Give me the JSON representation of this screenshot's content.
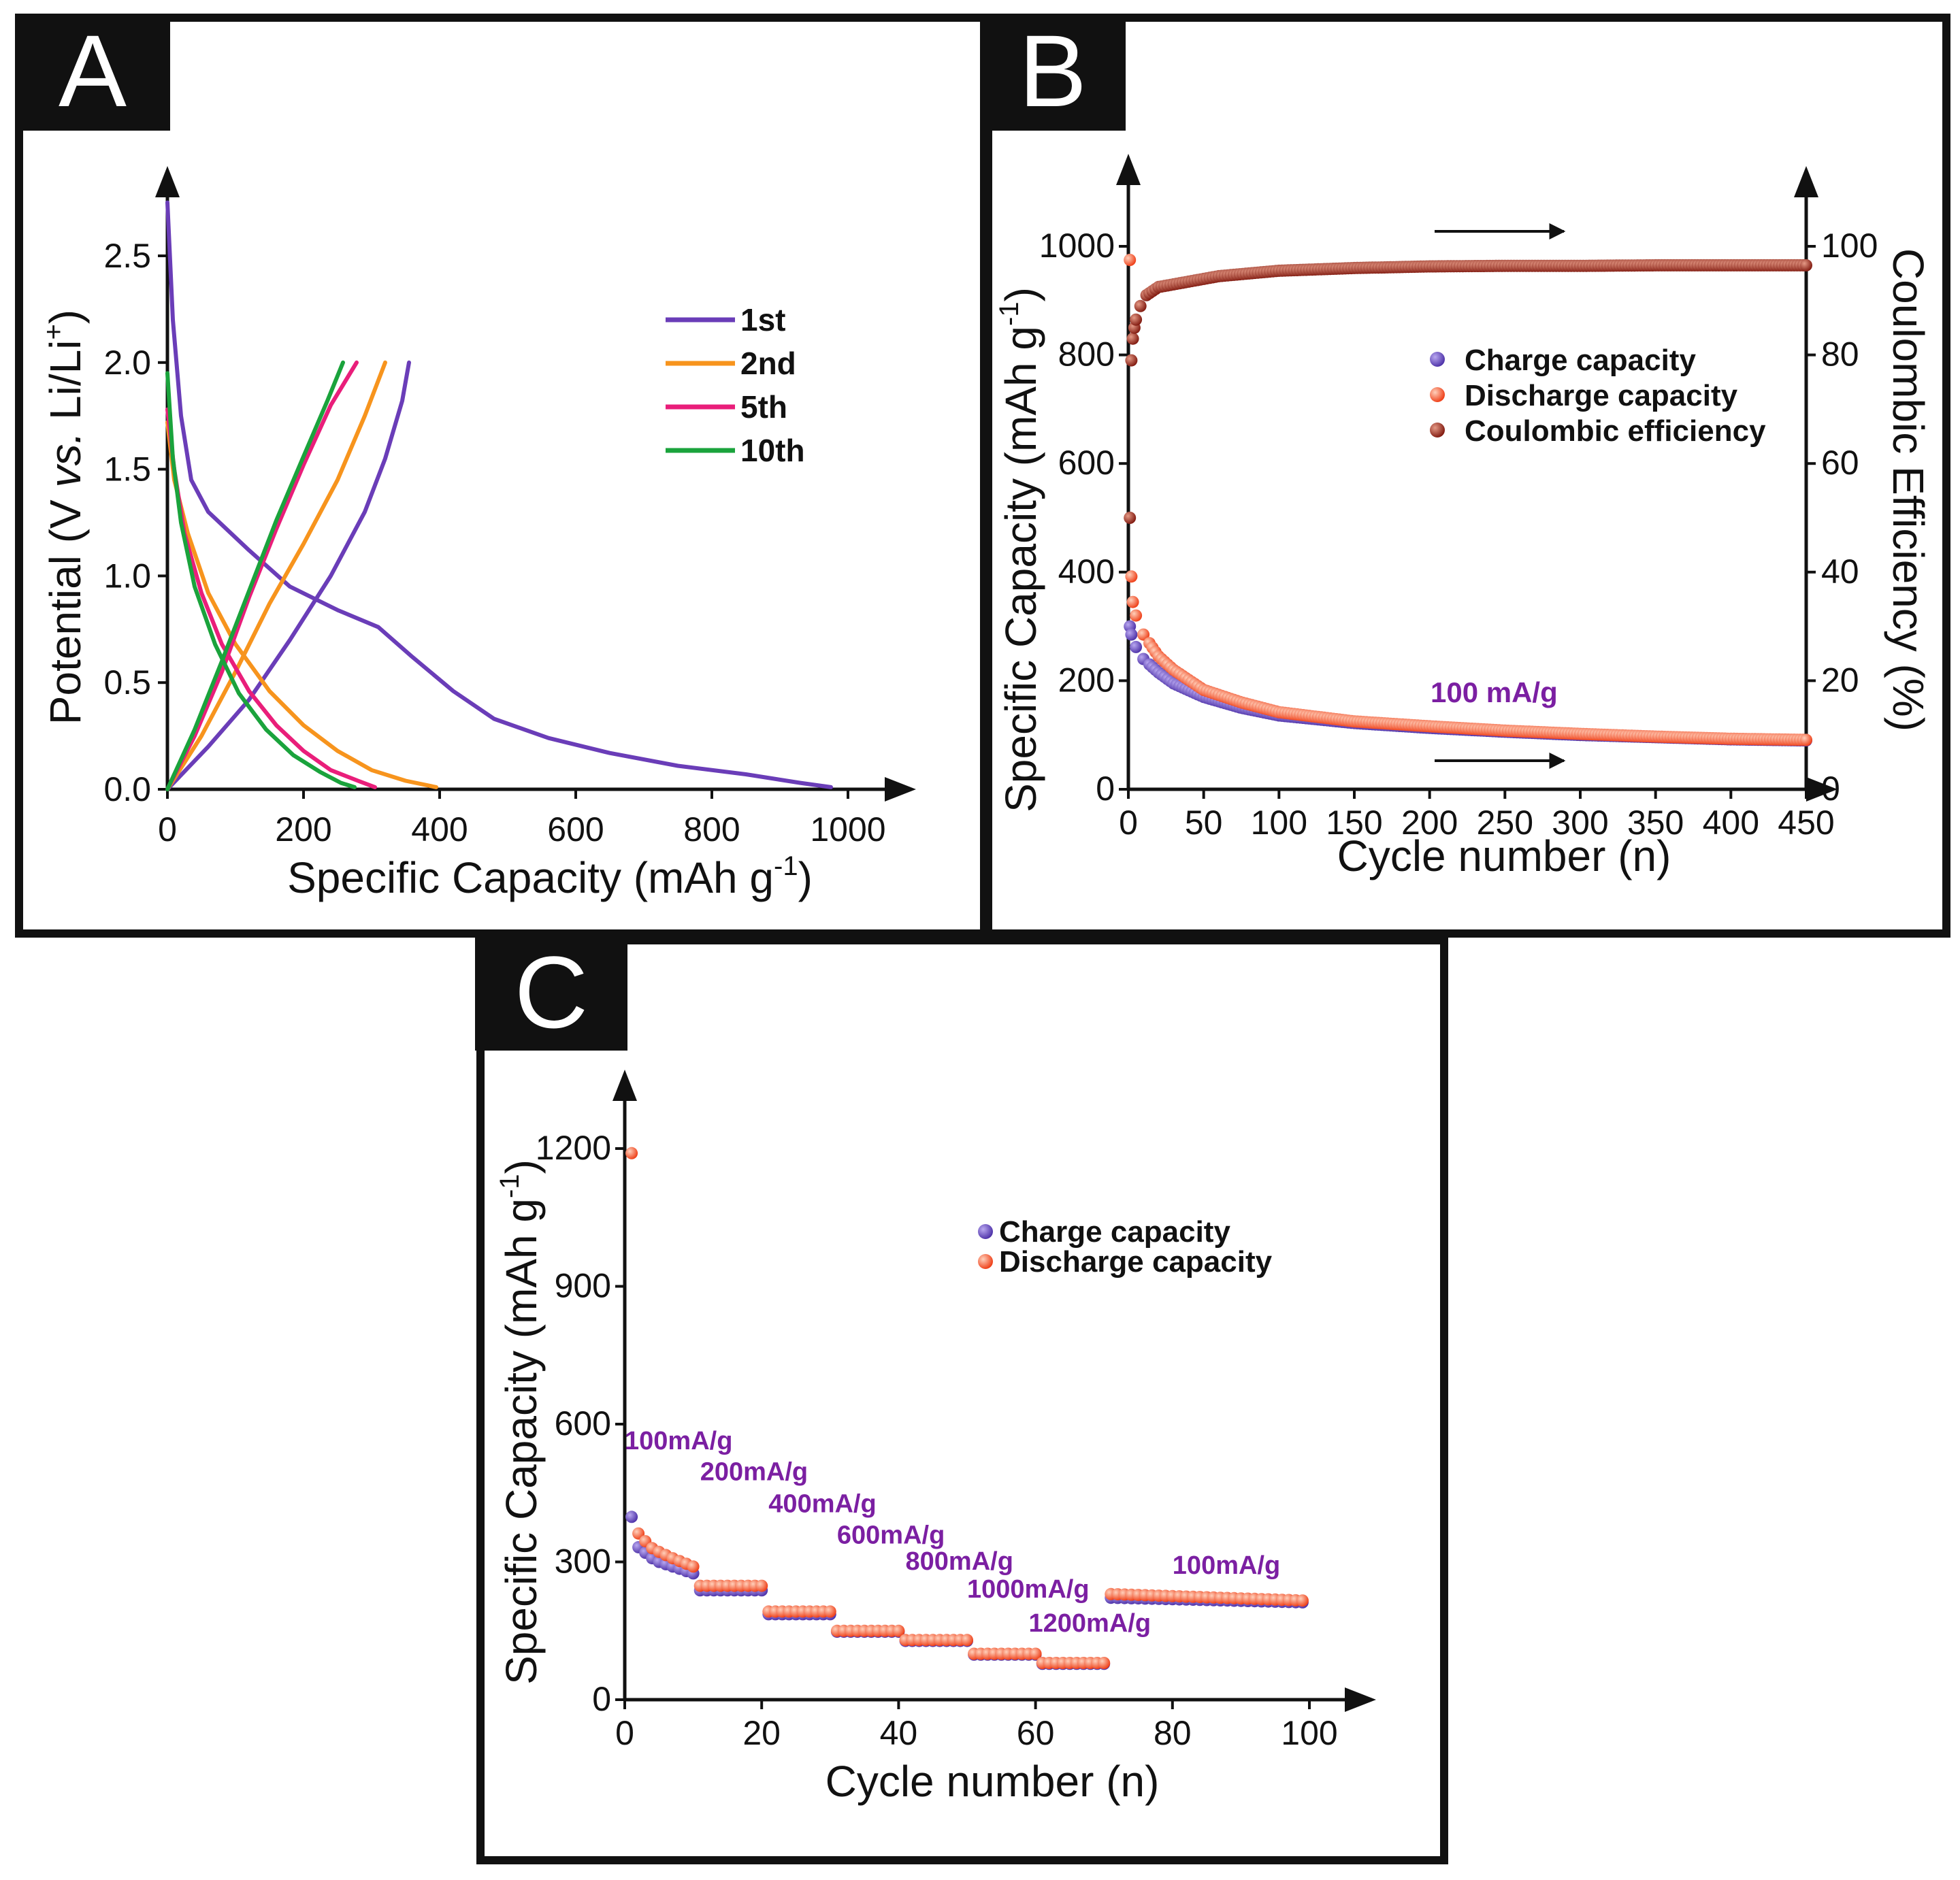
{
  "figure": {
    "panels": [
      "A",
      "B",
      "C"
    ]
  },
  "chart_data": [
    {
      "panel": "A",
      "type": "line",
      "xlabel": "Specific Capacity (mAh g",
      "xlabel_sup": "-1",
      "xlabel_end": ")",
      "ylabel_pre": "Potential (V ",
      "ylabel_italic": "vs.",
      "ylabel_post": " Li/Li",
      "ylabel_sup": "+",
      "ylabel_end": ")",
      "xlim": [
        0,
        1100
      ],
      "ylim": [
        0,
        2.8
      ],
      "xticks": [
        0,
        200,
        400,
        600,
        800,
        1000
      ],
      "yticks": [
        0.0,
        0.5,
        1.0,
        1.5,
        2.0,
        2.5
      ],
      "ytick_labels": [
        "0.0",
        "0.5",
        "1.0",
        "1.5",
        "2.0",
        "2.5"
      ],
      "legend": [
        "1st",
        "2nd",
        "5th",
        "10th"
      ],
      "series": [
        {
          "name": "1st",
          "color": "#6a3db8",
          "discharge": [
            [
              0,
              2.75
            ],
            [
              8,
              2.2
            ],
            [
              20,
              1.75
            ],
            [
              35,
              1.45
            ],
            [
              60,
              1.3
            ],
            [
              120,
              1.12
            ],
            [
              180,
              0.95
            ],
            [
              250,
              0.84
            ],
            [
              310,
              0.76
            ],
            [
              360,
              0.62
            ],
            [
              420,
              0.46
            ],
            [
              480,
              0.33
            ],
            [
              560,
              0.24
            ],
            [
              650,
              0.17
            ],
            [
              750,
              0.11
            ],
            [
              850,
              0.07
            ],
            [
              930,
              0.03
            ],
            [
              975,
              0.01
            ]
          ],
          "charge": [
            [
              0,
              0.0
            ],
            [
              60,
              0.2
            ],
            [
              120,
              0.42
            ],
            [
              180,
              0.7
            ],
            [
              240,
              1.0
            ],
            [
              290,
              1.3
            ],
            [
              320,
              1.55
            ],
            [
              345,
              1.82
            ],
            [
              355,
              2.0
            ]
          ]
        },
        {
          "name": "2nd",
          "color": "#f7941d",
          "discharge": [
            [
              0,
              1.72
            ],
            [
              10,
              1.45
            ],
            [
              30,
              1.2
            ],
            [
              60,
              0.92
            ],
            [
              100,
              0.68
            ],
            [
              150,
              0.46
            ],
            [
              200,
              0.3
            ],
            [
              250,
              0.18
            ],
            [
              300,
              0.09
            ],
            [
              350,
              0.04
            ],
            [
              395,
              0.01
            ]
          ],
          "charge": [
            [
              0,
              0.0
            ],
            [
              50,
              0.25
            ],
            [
              100,
              0.55
            ],
            [
              150,
              0.87
            ],
            [
              200,
              1.15
            ],
            [
              250,
              1.45
            ],
            [
              290,
              1.75
            ],
            [
              320,
              2.0
            ]
          ]
        },
        {
          "name": "5th",
          "color": "#e91e7a",
          "discharge": [
            [
              0,
              1.78
            ],
            [
              10,
              1.5
            ],
            [
              25,
              1.2
            ],
            [
              50,
              0.92
            ],
            [
              80,
              0.68
            ],
            [
              120,
              0.46
            ],
            [
              160,
              0.3
            ],
            [
              200,
              0.18
            ],
            [
              240,
              0.09
            ],
            [
              280,
              0.04
            ],
            [
              305,
              0.01
            ]
          ],
          "charge": [
            [
              0,
              0.0
            ],
            [
              40,
              0.25
            ],
            [
              80,
              0.55
            ],
            [
              120,
              0.9
            ],
            [
              160,
              1.22
            ],
            [
              200,
              1.52
            ],
            [
              240,
              1.8
            ],
            [
              278,
              2.0
            ]
          ]
        },
        {
          "name": "10th",
          "color": "#1aa33c",
          "discharge": [
            [
              0,
              1.95
            ],
            [
              8,
              1.55
            ],
            [
              20,
              1.25
            ],
            [
              40,
              0.95
            ],
            [
              70,
              0.68
            ],
            [
              105,
              0.45
            ],
            [
              145,
              0.28
            ],
            [
              185,
              0.16
            ],
            [
              225,
              0.08
            ],
            [
              255,
              0.03
            ],
            [
              275,
              0.01
            ]
          ],
          "charge": [
            [
              0,
              0.0
            ],
            [
              40,
              0.28
            ],
            [
              80,
              0.6
            ],
            [
              120,
              0.93
            ],
            [
              160,
              1.26
            ],
            [
              200,
              1.56
            ],
            [
              235,
              1.82
            ],
            [
              258,
              2.0
            ]
          ]
        }
      ]
    },
    {
      "panel": "B",
      "type": "scatter",
      "xlabel": "Cycle number (n)",
      "ylabel": "Specific Capacity (mAh g",
      "ylabel_sup": "-1",
      "ylabel_end": ")",
      "y2label": "Coulombic Efficiency (%)",
      "xlim": [
        0,
        450
      ],
      "ylim": [
        0,
        1100
      ],
      "y2lim": [
        0,
        110
      ],
      "xticks": [
        0,
        50,
        100,
        150,
        200,
        250,
        300,
        350,
        400,
        450
      ],
      "yticks": [
        0,
        200,
        400,
        600,
        800,
        1000
      ],
      "y2ticks": [
        0,
        20,
        40,
        60,
        80,
        100
      ],
      "legend": [
        "Charge capacity",
        "Discharge capacity",
        "Coulombic efficiency"
      ],
      "annotation": "100 mA/g",
      "series": [
        {
          "name": "Charge capacity",
          "color": "#5b3fbf",
          "axis": "left",
          "points": [
            [
              1,
              300
            ],
            [
              2,
              285
            ],
            [
              5,
              262
            ],
            [
              10,
              240
            ],
            [
              20,
              215
            ],
            [
              30,
              195
            ],
            [
              50,
              170
            ],
            [
              75,
              150
            ],
            [
              100,
              136
            ],
            [
              150,
              122
            ],
            [
              200,
              113
            ],
            [
              250,
              106
            ],
            [
              300,
              100
            ],
            [
              350,
              96
            ],
            [
              400,
              92
            ],
            [
              450,
              90
            ]
          ]
        },
        {
          "name": "Discharge capacity",
          "color": "#ff5a2e",
          "axis": "left",
          "points": [
            [
              1,
              975
            ],
            [
              2,
              392
            ],
            [
              3,
              345
            ],
            [
              5,
              320
            ],
            [
              10,
              285
            ],
            [
              20,
              245
            ],
            [
              30,
              220
            ],
            [
              50,
              183
            ],
            [
              75,
              160
            ],
            [
              100,
              142
            ],
            [
              150,
              125
            ],
            [
              200,
              116
            ],
            [
              250,
              108
            ],
            [
              300,
              102
            ],
            [
              350,
              97
            ],
            [
              400,
              93
            ],
            [
              450,
              91
            ]
          ]
        },
        {
          "name": "Coulombic efficiency",
          "color": "#a52a1a",
          "axis": "right",
          "points": [
            [
              1,
              50
            ],
            [
              2,
              79
            ],
            [
              3,
              83
            ],
            [
              4,
              85
            ],
            [
              5,
              86.5
            ],
            [
              8,
              89
            ],
            [
              12,
              91
            ],
            [
              20,
              92.5
            ],
            [
              40,
              93.5
            ],
            [
              60,
              94.5
            ],
            [
              100,
              95.5
            ],
            [
              150,
              96
            ],
            [
              200,
              96.3
            ],
            [
              250,
              96.4
            ],
            [
              300,
              96.4
            ],
            [
              350,
              96.5
            ],
            [
              400,
              96.5
            ],
            [
              450,
              96.5
            ]
          ]
        }
      ]
    },
    {
      "panel": "C",
      "type": "scatter",
      "xlabel": "Cycle number (n)",
      "ylabel": "Specific Capacity (mAh g",
      "ylabel_sup": "-1",
      "ylabel_end": ")",
      "xlim": [
        0,
        105
      ],
      "ylim": [
        0,
        1300
      ],
      "xticks": [
        0,
        20,
        40,
        60,
        80,
        100
      ],
      "yticks": [
        0,
        300,
        600,
        900,
        1200
      ],
      "legend": [
        "Charge capacity",
        "Discharge capacity"
      ],
      "rate_labels": [
        {
          "text": "100mA/g",
          "x": 0,
          "y": 545
        },
        {
          "text": "200mA/g",
          "x": 11,
          "y": 478
        },
        {
          "text": "400mA/g",
          "x": 21,
          "y": 408
        },
        {
          "text": "600mA/g",
          "x": 31,
          "y": 340
        },
        {
          "text": "800mA/g",
          "x": 41,
          "y": 283
        },
        {
          "text": "1000mA/g",
          "x": 50,
          "y": 222
        },
        {
          "text": "1200mA/g",
          "x": 59,
          "y": 148
        },
        {
          "text": "100mA/g",
          "x": 80,
          "y": 274
        }
      ],
      "steps": [
        {
          "from": 11,
          "to": 20,
          "charge": 238,
          "discharge": 248
        },
        {
          "from": 21,
          "to": 30,
          "charge": 186,
          "discharge": 192
        },
        {
          "from": 31,
          "to": 40,
          "charge": 148,
          "discharge": 150
        },
        {
          "from": 41,
          "to": 50,
          "charge": 128,
          "discharge": 130
        },
        {
          "from": 51,
          "to": 60,
          "charge": 98,
          "discharge": 100
        },
        {
          "from": 61,
          "to": 70,
          "charge": 78,
          "discharge": 80
        },
        {
          "from": 71,
          "to": 99,
          "charge": 222,
          "discharge": 230,
          "end_charge": 212,
          "end_discharge": 216
        }
      ],
      "first_cycles": {
        "charge": [
          [
            1,
            398
          ],
          [
            2,
            332
          ],
          [
            3,
            320
          ],
          [
            4,
            308
          ],
          [
            5,
            300
          ],
          [
            6,
            295
          ],
          [
            7,
            290
          ],
          [
            8,
            285
          ],
          [
            9,
            280
          ],
          [
            10,
            275
          ]
        ],
        "discharge": [
          [
            1,
            1190
          ],
          [
            2,
            362
          ],
          [
            3,
            345
          ],
          [
            4,
            330
          ],
          [
            5,
            322
          ],
          [
            6,
            315
          ],
          [
            7,
            308
          ],
          [
            8,
            302
          ],
          [
            9,
            296
          ],
          [
            10,
            290
          ]
        ]
      },
      "colors": {
        "charge": "#5b3fbf",
        "discharge": "#ff5a2e"
      }
    }
  ]
}
